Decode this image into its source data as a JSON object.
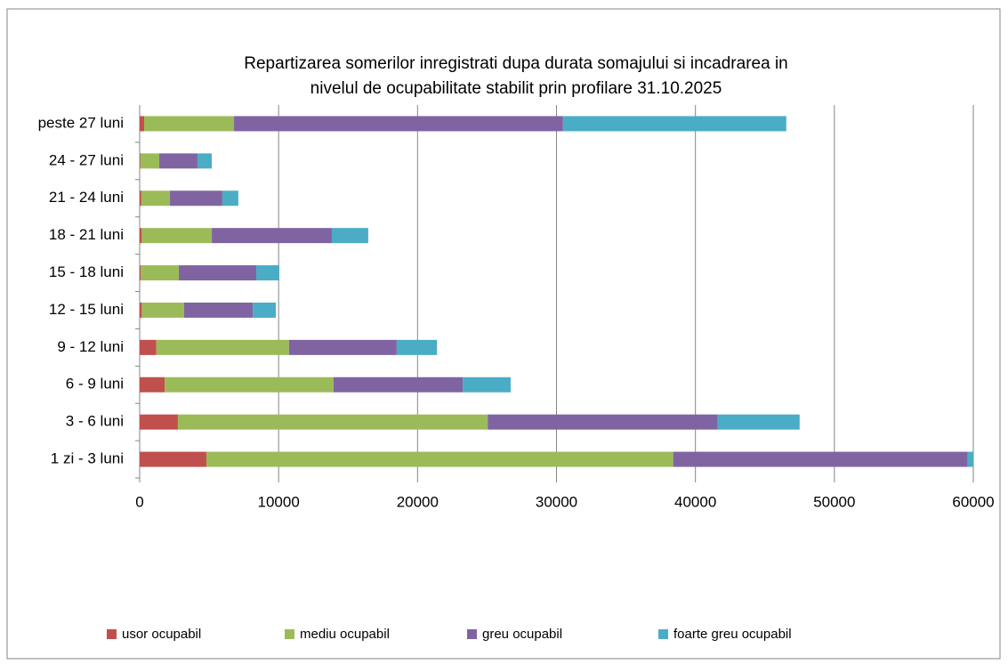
{
  "chart_data": {
    "type": "stacked-barh",
    "title": [
      "Repartizarea somerilor inregistrati dupa  durata somajului si incadrarea in",
      "nivelul de ocupabilitate stabilit prin profilare  31.10.2025"
    ],
    "categories": [
      "1 zi - 3 luni",
      "3 - 6 luni",
      "6 - 9 luni",
      "9 - 12 luni",
      "12 - 15 luni",
      "15 - 18 luni",
      "18 - 21 luni",
      "21 - 24 luni",
      "24 - 27 luni",
      "peste 27 luni"
    ],
    "series": [
      {
        "name": "usor ocupabil",
        "color": "#c0504d",
        "values": [
          4800,
          2750,
          1800,
          1200,
          150,
          80,
          150,
          120,
          50,
          320
        ]
      },
      {
        "name": "mediu ocupabil",
        "color": "#9bbb59",
        "values": [
          33600,
          22300,
          12150,
          9550,
          3050,
          2740,
          5040,
          2060,
          1360,
          6470
        ]
      },
      {
        "name": "greu ocupabil",
        "color": "#8064a2",
        "values": [
          21200,
          16550,
          9300,
          7750,
          4950,
          5570,
          8640,
          3770,
          2750,
          23680
        ]
      },
      {
        "name": "foarte greu ocupabil",
        "color": "#4bacc6",
        "values": [
          400,
          5900,
          3450,
          2900,
          1650,
          1660,
          2620,
          1150,
          1030,
          16070
        ]
      }
    ],
    "xlim": [
      0,
      60000
    ],
    "xticks": [
      0,
      10000,
      20000,
      30000,
      40000,
      50000,
      60000
    ],
    "grid": true,
    "legend": "bottom"
  }
}
